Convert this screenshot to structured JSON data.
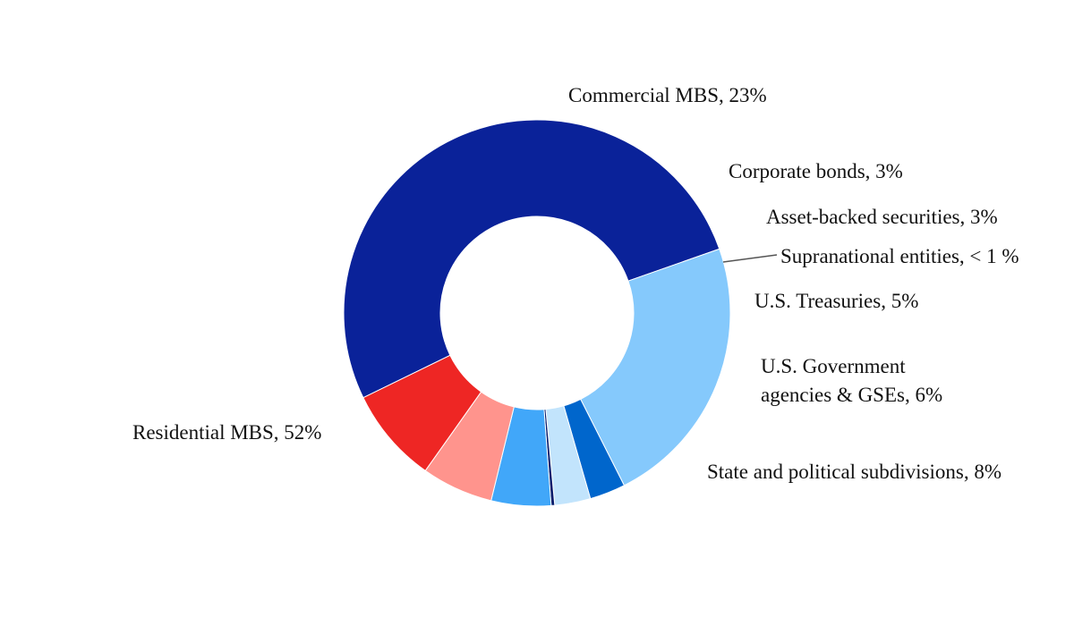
{
  "chart_data": {
    "type": "pie",
    "variant": "donut",
    "title": "",
    "legend": "none",
    "slices": [
      {
        "name": "Residential MBS",
        "label": "Residential MBS, 52%",
        "value": 52,
        "color": "#0A2299"
      },
      {
        "name": "Commercial MBS",
        "label": "Commercial MBS, 23%",
        "value": 23,
        "color": "#85C9FC"
      },
      {
        "name": "Corporate bonds",
        "label": "Corporate bonds, 3%",
        "value": 3,
        "color": "#0066CC"
      },
      {
        "name": "Asset-backed securities",
        "label": "Asset-backed securities, 3%",
        "value": 3,
        "color": "#C2E4FC"
      },
      {
        "name": "Supranational entities",
        "label": "Supranational entities, < 1 %",
        "value": 0.3,
        "color": "#0A1F6E"
      },
      {
        "name": "U.S. Treasuries",
        "label": "U.S. Treasuries, 5%",
        "value": 5,
        "color": "#41A7F9"
      },
      {
        "name": "U.S. Government agencies & GSEs",
        "label": "U.S. Government agencies & GSEs, 6%",
        "label_lines": [
          "U.S. Government",
          "agencies & GSEs, 6%"
        ],
        "value": 6,
        "color": "#FF948D"
      },
      {
        "name": "State and political subdivisions",
        "label": "State and political subdivisions, 8%",
        "value": 8,
        "color": "#EE2624"
      }
    ]
  }
}
